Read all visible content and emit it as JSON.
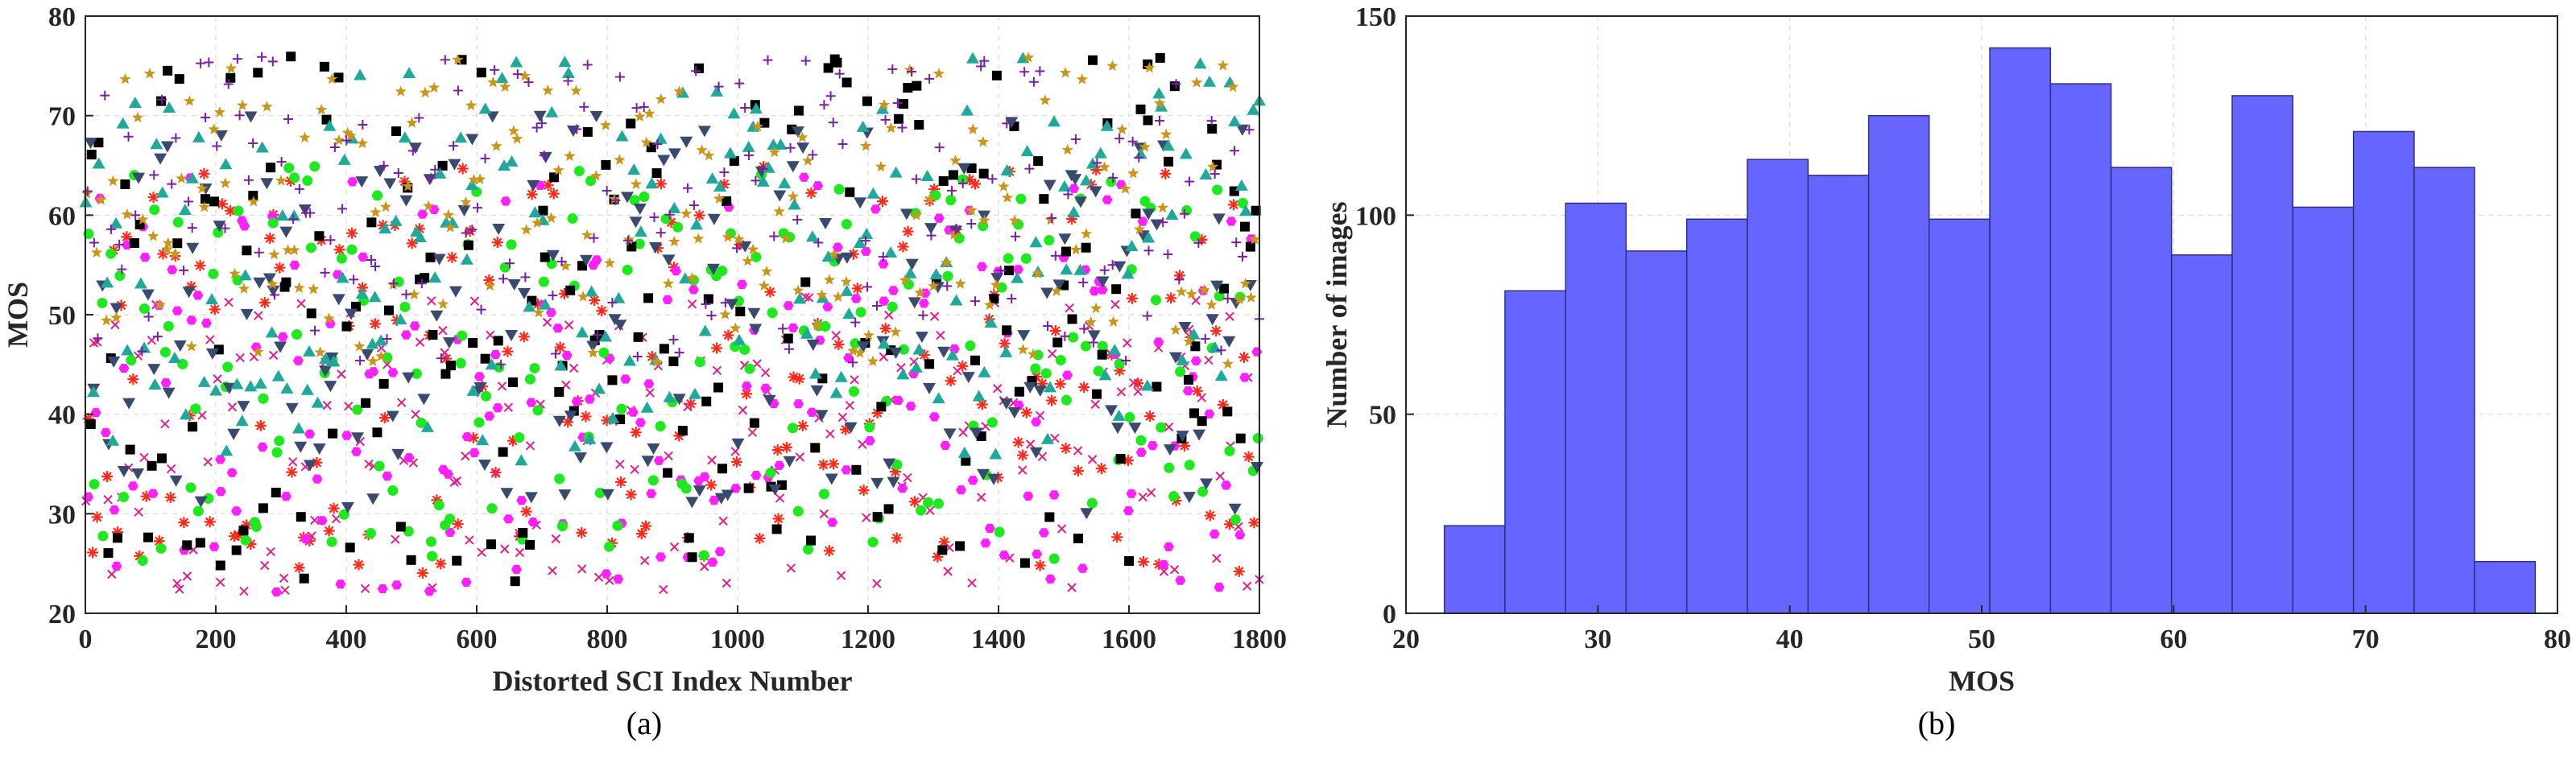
{
  "chart_data": [
    {
      "type": "scatter",
      "xlabel": "Distorted SCI Index Number",
      "ylabel": "MOS",
      "caption": "(a)",
      "xlim": [
        0,
        1800
      ],
      "ylim": [
        20,
        80
      ],
      "xticks": [
        0,
        200,
        400,
        600,
        800,
        1000,
        1200,
        1400,
        1600,
        1800
      ],
      "yticks": [
        20,
        30,
        40,
        50,
        60,
        70,
        80
      ],
      "grid": true,
      "points_per_series": 200,
      "series": [
        {
          "marker": "asterisk",
          "color": "#ff2a1a",
          "mos_range": [
            24,
            65
          ]
        },
        {
          "marker": "cross",
          "color": "#e0208a",
          "mos_range": [
            22,
            52
          ]
        },
        {
          "marker": "hexagon",
          "color": "#ff20ff",
          "mos_range": [
            22,
            64
          ]
        },
        {
          "marker": "circle",
          "color": "#1ee81e",
          "mos_range": [
            25,
            65
          ]
        },
        {
          "marker": "square",
          "color": "#000000",
          "mos_range": [
            23,
            76
          ]
        },
        {
          "marker": "triangle-down",
          "color": "#3a4a6e",
          "mos_range": [
            30,
            70
          ]
        },
        {
          "marker": "triangle-up",
          "color": "#20a89a",
          "mos_range": [
            35,
            76
          ]
        },
        {
          "marker": "pentagram",
          "color": "#c9961a",
          "mos_range": [
            45,
            76
          ]
        },
        {
          "marker": "plus",
          "color": "#7a1fa2",
          "mos_range": [
            45,
            76
          ]
        }
      ]
    },
    {
      "type": "bar",
      "xlabel": "MOS",
      "ylabel": "Number of images",
      "caption": "(b)",
      "xlim": [
        20,
        80
      ],
      "ylim": [
        0,
        150
      ],
      "xticks": [
        20,
        30,
        40,
        50,
        60,
        70,
        80
      ],
      "yticks": [
        0,
        50,
        100,
        150
      ],
      "grid": true,
      "bar_color": "#6666ff",
      "bar_edge_color": "#2e2e80",
      "bin_edges": [
        22,
        25.16,
        28.32,
        31.47,
        34.63,
        37.79,
        40.95,
        44.11,
        47.26,
        50.42,
        53.58,
        56.74,
        59.89,
        63.05,
        66.21,
        69.37,
        72.53,
        75.68,
        78.84
      ],
      "values": [
        22,
        81,
        103,
        91,
        99,
        114,
        110,
        125,
        99,
        142,
        133,
        112,
        90,
        130,
        102,
        121,
        112,
        13
      ]
    }
  ]
}
